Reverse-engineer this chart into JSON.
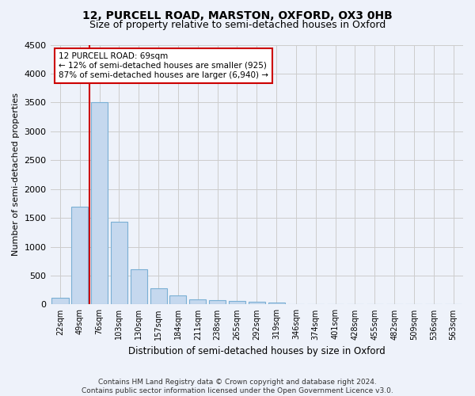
{
  "title": "12, PURCELL ROAD, MARSTON, OXFORD, OX3 0HB",
  "subtitle": "Size of property relative to semi-detached houses in Oxford",
  "xlabel": "Distribution of semi-detached houses by size in Oxford",
  "ylabel": "Number of semi-detached properties",
  "bar_labels": [
    "22sqm",
    "49sqm",
    "76sqm",
    "103sqm",
    "130sqm",
    "157sqm",
    "184sqm",
    "211sqm",
    "238sqm",
    "265sqm",
    "292sqm",
    "319sqm",
    "346sqm",
    "374sqm",
    "401sqm",
    "428sqm",
    "455sqm",
    "482sqm",
    "509sqm",
    "536sqm",
    "563sqm"
  ],
  "bar_values": [
    120,
    1700,
    3500,
    1430,
    610,
    285,
    155,
    95,
    80,
    55,
    45,
    30,
    5,
    0,
    0,
    0,
    0,
    0,
    0,
    0,
    0
  ],
  "bar_color": "#c5d8ee",
  "bar_edgecolor": "#7aafd4",
  "property_line_x": 1.5,
  "annotation_line1": "12 PURCELL ROAD: 69sqm",
  "annotation_line2": "← 12% of semi-detached houses are smaller (925)",
  "annotation_line3": "87% of semi-detached houses are larger (6,940) →",
  "annotation_box_color": "#ffffff",
  "annotation_box_edgecolor": "#cc0000",
  "vline_color": "#cc0000",
  "ylim": [
    0,
    4500
  ],
  "yticks": [
    0,
    500,
    1000,
    1500,
    2000,
    2500,
    3000,
    3500,
    4000,
    4500
  ],
  "grid_color": "#cccccc",
  "footnote": "Contains HM Land Registry data © Crown copyright and database right 2024.\nContains public sector information licensed under the Open Government Licence v3.0.",
  "bg_color": "#eef2fa",
  "title_fontsize": 10,
  "subtitle_fontsize": 9
}
